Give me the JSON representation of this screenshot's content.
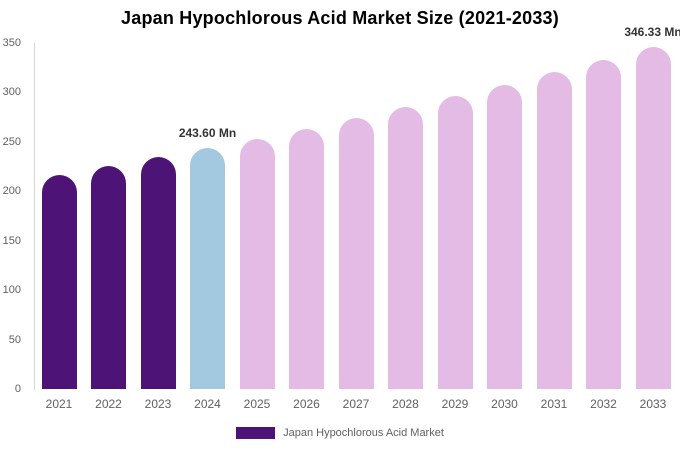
{
  "chart_data": {
    "type": "bar",
    "title": "Japan Hypochlorous Acid Market Size (2021-2033)",
    "categories": [
      "2021",
      "2022",
      "2023",
      "2024",
      "2025",
      "2026",
      "2027",
      "2028",
      "2029",
      "2030",
      "2031",
      "2032",
      "2033"
    ],
    "values": [
      216.6,
      225.3,
      234.3,
      243.6,
      253.3,
      263.4,
      273.9,
      284.8,
      296.2,
      308.0,
      320.3,
      333.1,
      346.33
    ],
    "unit": "Mn",
    "bar_colors": [
      "#4D1377",
      "#4D1377",
      "#4D1377",
      "#A2C9DF",
      "#E4BBE4",
      "#E4BBE4",
      "#E4BBE4",
      "#E4BBE4",
      "#E4BBE4",
      "#E4BBE4",
      "#E4BBE4",
      "#E4BBE4",
      "#E4BBE4"
    ],
    "data_labels": [
      {
        "category": "2024",
        "text": "243.60 Mn"
      },
      {
        "category": "2033",
        "text": "346.33 Mn"
      }
    ],
    "y_ticks": [
      0,
      50,
      100,
      150,
      200,
      250,
      300,
      350
    ],
    "ylim": [
      0,
      350
    ],
    "xlabel": "",
    "ylabel": "",
    "grid": false,
    "legend_position": "bottom"
  },
  "legend": {
    "label": "Japan Hypochlorous Acid Market",
    "swatch_color": "#4D1377"
  },
  "colors": {
    "historical_bar": "#4D1377",
    "current_year_bar": "#A2C9DF",
    "forecast_bar": "#E4BBE4",
    "axis_line": "#D6D6D6",
    "tick_text": "#606060",
    "data_label_text": "#333333",
    "title_text": "#000000",
    "background": "#FFFFFF"
  }
}
